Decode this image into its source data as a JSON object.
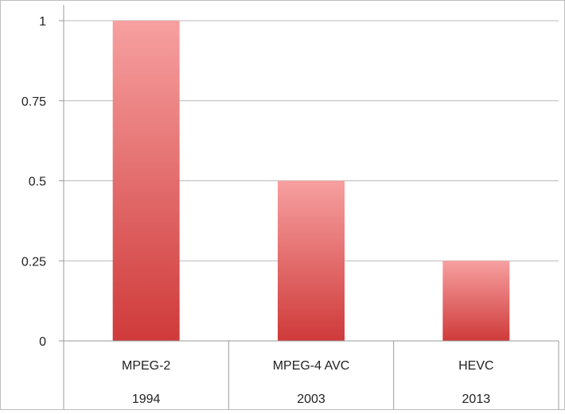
{
  "chart_data": {
    "type": "bar",
    "categories": [
      "MPEG-2",
      "MPEG-4 AVC",
      "HEVC"
    ],
    "category_sublabels": [
      "1994",
      "2003",
      "2013"
    ],
    "values": [
      1,
      0.5,
      0.25
    ],
    "yticks": [
      "0",
      "0.25",
      "0.5",
      "0.75",
      "1"
    ],
    "ylim": [
      0,
      1
    ],
    "title": "",
    "xlabel": "",
    "ylabel": "",
    "grid": true,
    "legend": "none",
    "colors": {
      "bar_top": "#f7a0a0",
      "bar_bottom": "#cf3a3a",
      "grid": "#b8b8b8",
      "axis": "#9a9a9a",
      "frame": "#bdbdbd"
    }
  }
}
